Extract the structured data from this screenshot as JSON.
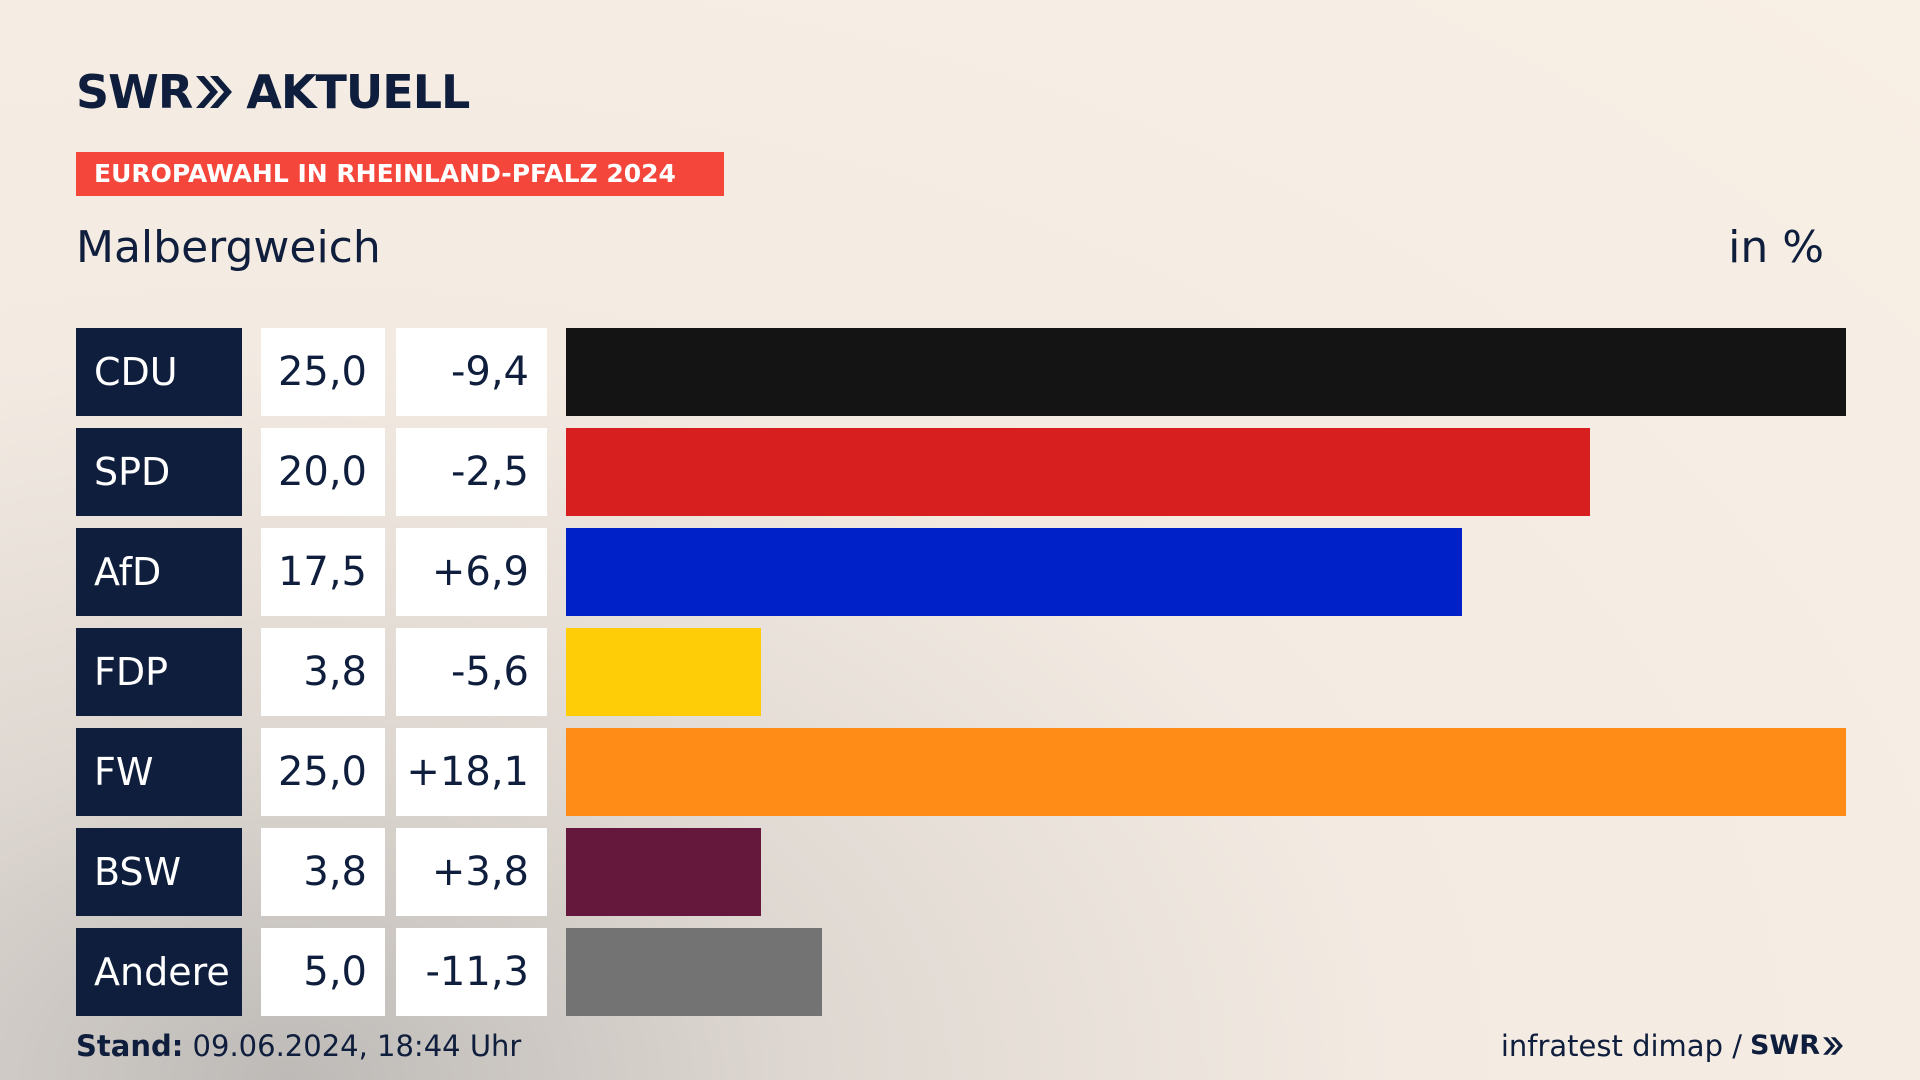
{
  "header": {
    "logo_swr": "SWR",
    "logo_aktuell": "AKTUELL",
    "banner": "EUROPAWAHL IN RHEINLAND-PFALZ 2024",
    "region": "Malbergweich",
    "unit": "in %"
  },
  "footer": {
    "stand_label": "Stand:",
    "stand_value": "09.06.2024, 18:44 Uhr",
    "source": "infratest dimap /",
    "source_logo": "SWR"
  },
  "colors": {
    "navy": "#0f1e3c",
    "banner": "#f5463c"
  },
  "chart_data": {
    "type": "bar",
    "orientation": "horizontal",
    "categories": [
      "CDU",
      "SPD",
      "AfD",
      "FDP",
      "FW",
      "BSW",
      "Andere"
    ],
    "values": [
      25.0,
      20.0,
      17.5,
      3.8,
      25.0,
      3.8,
      5.0
    ],
    "values_label": [
      "25,0",
      "20,0",
      "17,5",
      "3,8",
      "25,0",
      "3,8",
      "5,0"
    ],
    "changes": [
      -9.4,
      -2.5,
      6.9,
      -5.6,
      18.1,
      3.8,
      -11.3
    ],
    "changes_label": [
      "-9,4",
      "-2,5",
      "+6,9",
      "-5,6",
      "+18,1",
      "+3,8",
      "-11,3"
    ],
    "colors": [
      "#141414",
      "#d71f1f",
      "#0021c8",
      "#ffcc08",
      "#ff8c17",
      "#65173c",
      "#737374"
    ],
    "xlim": [
      0,
      25
    ],
    "grid": false,
    "legend": "none"
  }
}
